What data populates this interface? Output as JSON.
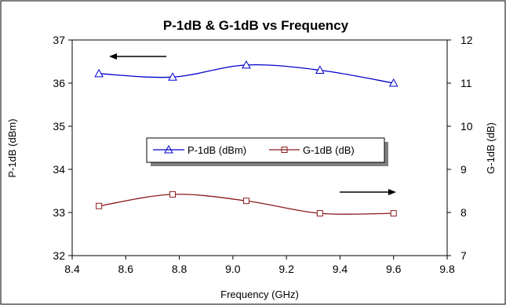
{
  "chart_data": {
    "type": "line",
    "title": "P-1dB & G-1dB vs Frequency",
    "xlabel": "Frequency (GHz)",
    "ylabel_left": "P-1dB (dBm)",
    "ylabel_right": "G-1dB (dB)",
    "xlim": [
      8.4,
      9.8
    ],
    "xticks": [
      8.4,
      8.6,
      8.8,
      9.0,
      9.2,
      9.4,
      9.6,
      9.8
    ],
    "xtick_labels": [
      "8.4",
      "8.6",
      "8.8",
      "9.0",
      "9.2",
      "9.4",
      "9.6",
      "9.8"
    ],
    "ylim_left": [
      32,
      37
    ],
    "yticks_left": [
      32,
      33,
      34,
      35,
      36,
      37
    ],
    "yticks_left_labels": [
      "32",
      "33",
      "34",
      "35",
      "36",
      "37"
    ],
    "ylim_right": [
      7,
      12
    ],
    "yticks_right": [
      7,
      8,
      9,
      10,
      11,
      12
    ],
    "yticks_right_labels": [
      "7",
      "8",
      "9",
      "10",
      "11",
      "12"
    ],
    "grid": false,
    "legend_position": "center",
    "series": [
      {
        "name": "P-1dB (dBm)",
        "axis": "left",
        "color": "#0000cc",
        "marker": "triangle",
        "x": [
          8.5,
          8.775,
          9.05,
          9.325,
          9.6
        ],
        "y": [
          36.22,
          36.14,
          36.42,
          36.3,
          36.0
        ]
      },
      {
        "name": "G-1dB (dB)",
        "axis": "right",
        "color": "#8b1a1a",
        "marker": "square",
        "x": [
          8.5,
          8.775,
          9.05,
          9.325,
          9.6
        ],
        "y": [
          8.15,
          8.42,
          8.27,
          7.98,
          7.98
        ]
      }
    ]
  }
}
